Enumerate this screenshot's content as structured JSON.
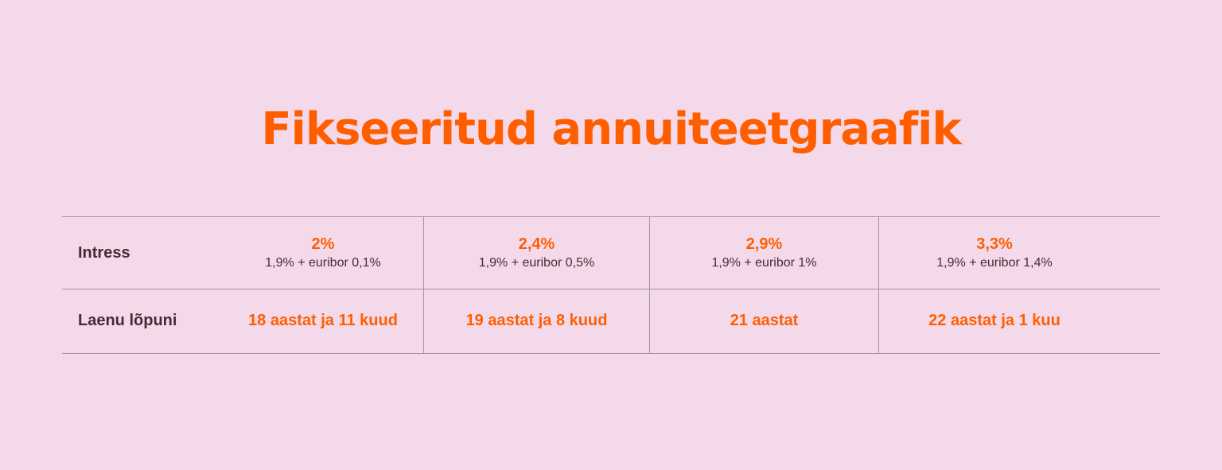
{
  "colors": {
    "background": "#f4d9ea",
    "accent": "#ff5e00",
    "text_dark": "#4b2a34",
    "divider": "#a7949f"
  },
  "title": "Fikseeritud annuiteetgraafik",
  "table": {
    "rows": [
      {
        "label": "Intress",
        "cells": [
          {
            "main": "2%",
            "sub": "1,9% + euribor 0,1%"
          },
          {
            "main": "2,4%",
            "sub": "1,9% + euribor 0,5%"
          },
          {
            "main": "2,9%",
            "sub": "1,9% + euribor 1%"
          },
          {
            "main": "3,3%",
            "sub": "1,9% + euribor 1,4%"
          }
        ]
      },
      {
        "label": "Laenu lõpuni",
        "cells": [
          {
            "main": "18 aastat ja 11 kuud"
          },
          {
            "main": "19 aastat ja 8 kuud"
          },
          {
            "main": "21 aastat"
          },
          {
            "main": "22 aastat ja 1 kuu"
          }
        ]
      }
    ]
  }
}
